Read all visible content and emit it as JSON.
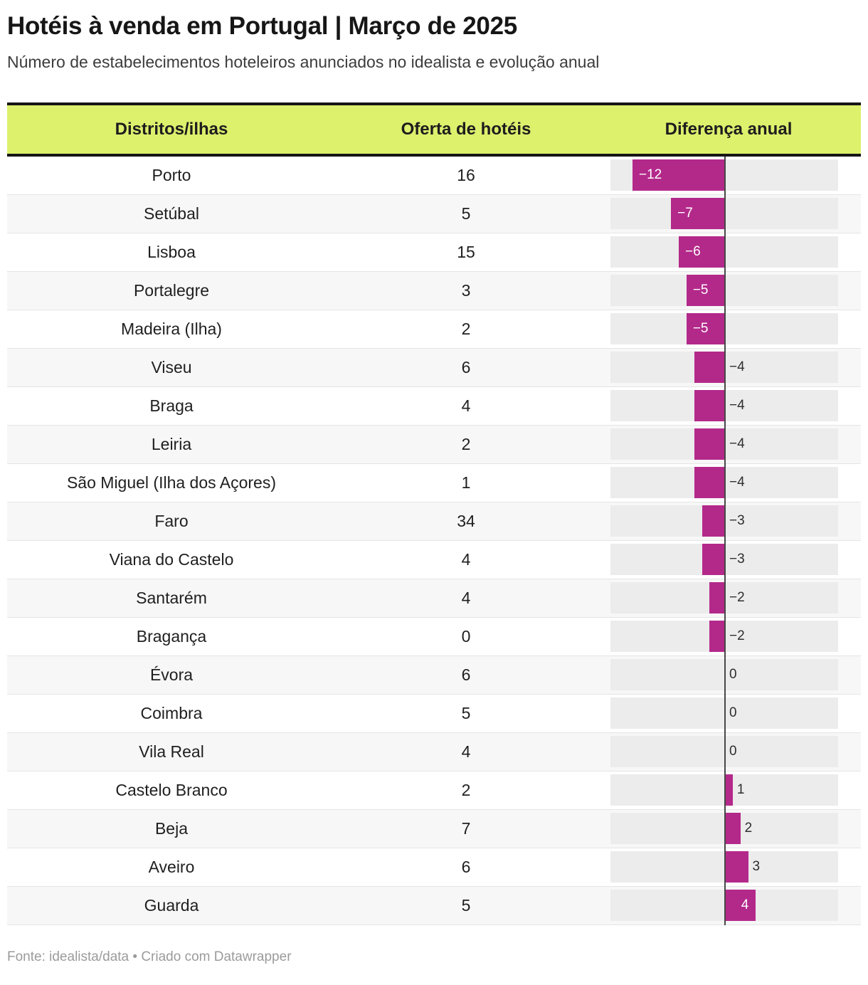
{
  "chart_data": {
    "type": "table",
    "title": "Hotéis à venda em Portugal | Março de 2025",
    "subtitle": "Número de estabelecimentos hoteleiros anunciados no idealista e evolução anual",
    "columns": [
      "Distritos/ilhas",
      "Oferta de hotéis",
      "Diferença anual"
    ],
    "bar_column": "Diferença anual",
    "bar_axis_value": 0,
    "bar_range": [
      -12,
      4
    ],
    "rows": [
      {
        "district": "Porto",
        "offer": 16,
        "diff": -12,
        "label": "−12"
      },
      {
        "district": "Setúbal",
        "offer": 5,
        "diff": -7,
        "label": "−7"
      },
      {
        "district": "Lisboa",
        "offer": 15,
        "diff": -6,
        "label": "−6"
      },
      {
        "district": "Portalegre",
        "offer": 3,
        "diff": -5,
        "label": "−5"
      },
      {
        "district": "Madeira (Ilha)",
        "offer": 2,
        "diff": -5,
        "label": "−5"
      },
      {
        "district": "Viseu",
        "offer": 6,
        "diff": -4,
        "label": "−4"
      },
      {
        "district": "Braga",
        "offer": 4,
        "diff": -4,
        "label": "−4"
      },
      {
        "district": "Leiria",
        "offer": 2,
        "diff": -4,
        "label": "−4"
      },
      {
        "district": "São Miguel (Ilha dos Açores)",
        "offer": 1,
        "diff": -4,
        "label": "−4"
      },
      {
        "district": "Faro",
        "offer": 34,
        "diff": -3,
        "label": "−3"
      },
      {
        "district": "Viana do Castelo",
        "offer": 4,
        "diff": -3,
        "label": "−3"
      },
      {
        "district": "Santarém",
        "offer": 4,
        "diff": -2,
        "label": "−2"
      },
      {
        "district": "Bragança",
        "offer": 0,
        "diff": -2,
        "label": "−2"
      },
      {
        "district": "Évora",
        "offer": 6,
        "diff": 0,
        "label": "0"
      },
      {
        "district": "Coimbra",
        "offer": 5,
        "diff": 0,
        "label": "0"
      },
      {
        "district": "Vila Real",
        "offer": 4,
        "diff": 0,
        "label": "0"
      },
      {
        "district": "Castelo Branco",
        "offer": 2,
        "diff": 1,
        "label": "1"
      },
      {
        "district": "Beja",
        "offer": 7,
        "diff": 2,
        "label": "2"
      },
      {
        "district": "Aveiro",
        "offer": 6,
        "diff": 3,
        "label": "3"
      },
      {
        "district": "Guarda",
        "offer": 5,
        "diff": 4,
        "label": "4"
      }
    ],
    "source_note": "Fonte: idealista/data • Criado com Datawrapper"
  },
  "style": {
    "bar_color": "#b3298a",
    "header_bg": "#ddf16d",
    "track_bg": "#ececec",
    "alt_row_bg": "#f7f7f7",
    "axis_color": "#474747"
  }
}
